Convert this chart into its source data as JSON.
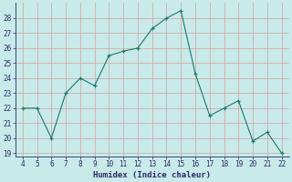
{
  "x": [
    4,
    5,
    6,
    7,
    8,
    9,
    10,
    11,
    12,
    13,
    14,
    15,
    16,
    17,
    18,
    19,
    20,
    21,
    22
  ],
  "y": [
    22,
    22,
    20,
    23,
    24,
    23.5,
    25.5,
    25.8,
    26.0,
    27.3,
    28.0,
    28.5,
    24.3,
    21.5,
    22.0,
    22.5,
    19.8,
    20.4,
    19.0
  ],
  "xlabel": "Humidex (Indice chaleur)",
  "xlim": [
    3.5,
    22.5
  ],
  "ylim": [
    18.8,
    29.0
  ],
  "yticks": [
    19,
    20,
    21,
    22,
    23,
    24,
    25,
    26,
    27,
    28
  ],
  "xticks": [
    4,
    5,
    6,
    7,
    8,
    9,
    10,
    11,
    12,
    13,
    14,
    15,
    16,
    17,
    18,
    19,
    20,
    21,
    22
  ],
  "line_color": "#1a7a6e",
  "bg_color": "#c8eae8",
  "grid_major_color": "#d4a0a0",
  "grid_minor_color": "#dbb8b8",
  "tick_color": "#2a2a6a",
  "label_color": "#2a2a6a"
}
